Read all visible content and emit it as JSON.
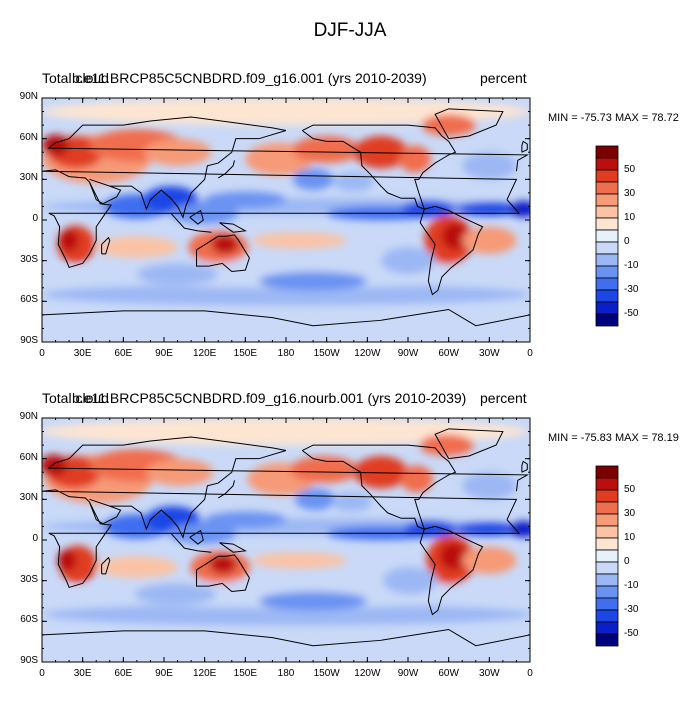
{
  "main_title": "DJF-JJA",
  "colors": {
    "levels": [
      "#00007f",
      "#0a1fc7",
      "#1c46e6",
      "#3f6ef0",
      "#6a93f2",
      "#9cb8f4",
      "#c9d9f7",
      "#e7f1fc",
      "#fde5d2",
      "#fbc3a5",
      "#f69a77",
      "#f06d4d",
      "#e03c22",
      "#b9100f",
      "#7b0000"
    ],
    "coast": "#000000"
  },
  "panels": [
    {
      "left_label": "Total cloud",
      "center_label": "b.e11.BRCP85C5CNBDRD.f09_g16.001 (yrs 2010-2039)",
      "right_label": "percent",
      "minmax": "MIN = -75.73 MAX =  78.72"
    },
    {
      "left_label": "Total cloud",
      "center_label": "b.e11.BRCP85C5CNBDRD.f09_g16.nourb.001 (yrs 2010-2039)",
      "right_label": "percent",
      "minmax": "MIN = -75.83 MAX =  78.19"
    }
  ],
  "y_tick_labels": [
    "90N",
    "60N",
    "30N",
    "0",
    "30S",
    "60S",
    "90S"
  ],
  "x_tick_labels": [
    "0",
    "30E",
    "60E",
    "90E",
    "120E",
    "150E",
    "180",
    "150W",
    "120W",
    "90W",
    "60W",
    "30W",
    "0"
  ],
  "colorbar_labels": [
    "50",
    "30",
    "10",
    "0",
    "-10",
    "-30",
    "-50"
  ],
  "chart_data": [
    {
      "type": "heatmap",
      "title": "DJF-JJA",
      "subtitle": "b.e11.BRCP85C5CNBDRD.f09_g16.001 (yrs 2010-2039)",
      "variable": "Total cloud",
      "units": "percent",
      "min": -75.73,
      "max": 78.72,
      "xlim": [
        0,
        360
      ],
      "ylim": [
        -90,
        90
      ],
      "levels": [
        -60,
        -50,
        -40,
        -30,
        -20,
        -10,
        -5,
        0,
        5,
        10,
        20,
        30,
        40,
        50,
        60
      ],
      "features": [
        {
          "region": "Northern Africa / Eurasia midlatitudes",
          "sign": "positive"
        },
        {
          "region": "Tropical Indian Ocean / Maritime Continent",
          "sign": "negative"
        },
        {
          "region": "Southern Africa",
          "sign": "positive"
        },
        {
          "region": "Australia",
          "sign": "positive"
        },
        {
          "region": "South America",
          "sign": "positive"
        },
        {
          "region": "North Pacific / North America",
          "sign": "positive"
        },
        {
          "region": "Equatorial Atlantic / Pacific ITCZ",
          "sign": "negative"
        },
        {
          "region": "Southern Ocean",
          "sign": "negative"
        }
      ]
    },
    {
      "type": "heatmap",
      "title": "DJF-JJA",
      "subtitle": "b.e11.BRCP85C5CNBDRD.f09_g16.nourb.001 (yrs 2010-2039)",
      "variable": "Total cloud",
      "units": "percent",
      "min": -75.83,
      "max": 78.19,
      "xlim": [
        0,
        360
      ],
      "ylim": [
        -90,
        90
      ],
      "levels": [
        -60,
        -50,
        -40,
        -30,
        -20,
        -10,
        -5,
        0,
        5,
        10,
        20,
        30,
        40,
        50,
        60
      ],
      "features": [
        {
          "region": "Northern Africa / Eurasia midlatitudes",
          "sign": "positive"
        },
        {
          "region": "Tropical Indian Ocean / Maritime Continent",
          "sign": "negative"
        },
        {
          "region": "Southern Africa",
          "sign": "positive"
        },
        {
          "region": "Australia",
          "sign": "positive"
        },
        {
          "region": "South America",
          "sign": "positive"
        },
        {
          "region": "North Pacific / North America",
          "sign": "positive"
        },
        {
          "region": "Equatorial Atlantic / Pacific ITCZ",
          "sign": "negative"
        },
        {
          "region": "Southern Ocean",
          "sign": "negative"
        }
      ]
    }
  ]
}
